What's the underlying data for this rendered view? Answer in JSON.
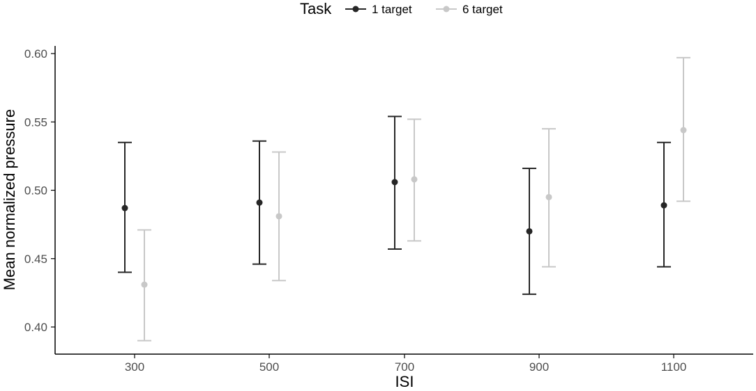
{
  "chart_data": {
    "type": "scatter",
    "title": "",
    "xlabel": "ISI",
    "ylabel": "Mean normalized pressure",
    "categories": [
      "300",
      "500",
      "700",
      "900",
      "1100"
    ],
    "yticks": [
      "0.40",
      "0.45",
      "0.50",
      "0.55",
      "0.60"
    ],
    "ylim": [
      0.38,
      0.605
    ],
    "legend": {
      "title": "Task",
      "position": "top"
    },
    "series": [
      {
        "name": "1 target",
        "color": "#262626",
        "values": [
          0.487,
          0.491,
          0.506,
          0.47,
          0.489
        ],
        "lower": [
          0.44,
          0.446,
          0.457,
          0.424,
          0.444
        ],
        "upper": [
          0.535,
          0.536,
          0.554,
          0.516,
          0.535
        ]
      },
      {
        "name": "6 target",
        "color": "#c8c8c8",
        "values": [
          0.431,
          0.481,
          0.508,
          0.495,
          0.544
        ],
        "lower": [
          0.39,
          0.434,
          0.463,
          0.444,
          0.492
        ],
        "upper": [
          0.471,
          0.528,
          0.552,
          0.545,
          0.597
        ]
      }
    ],
    "grid": false,
    "errorbars": true
  }
}
